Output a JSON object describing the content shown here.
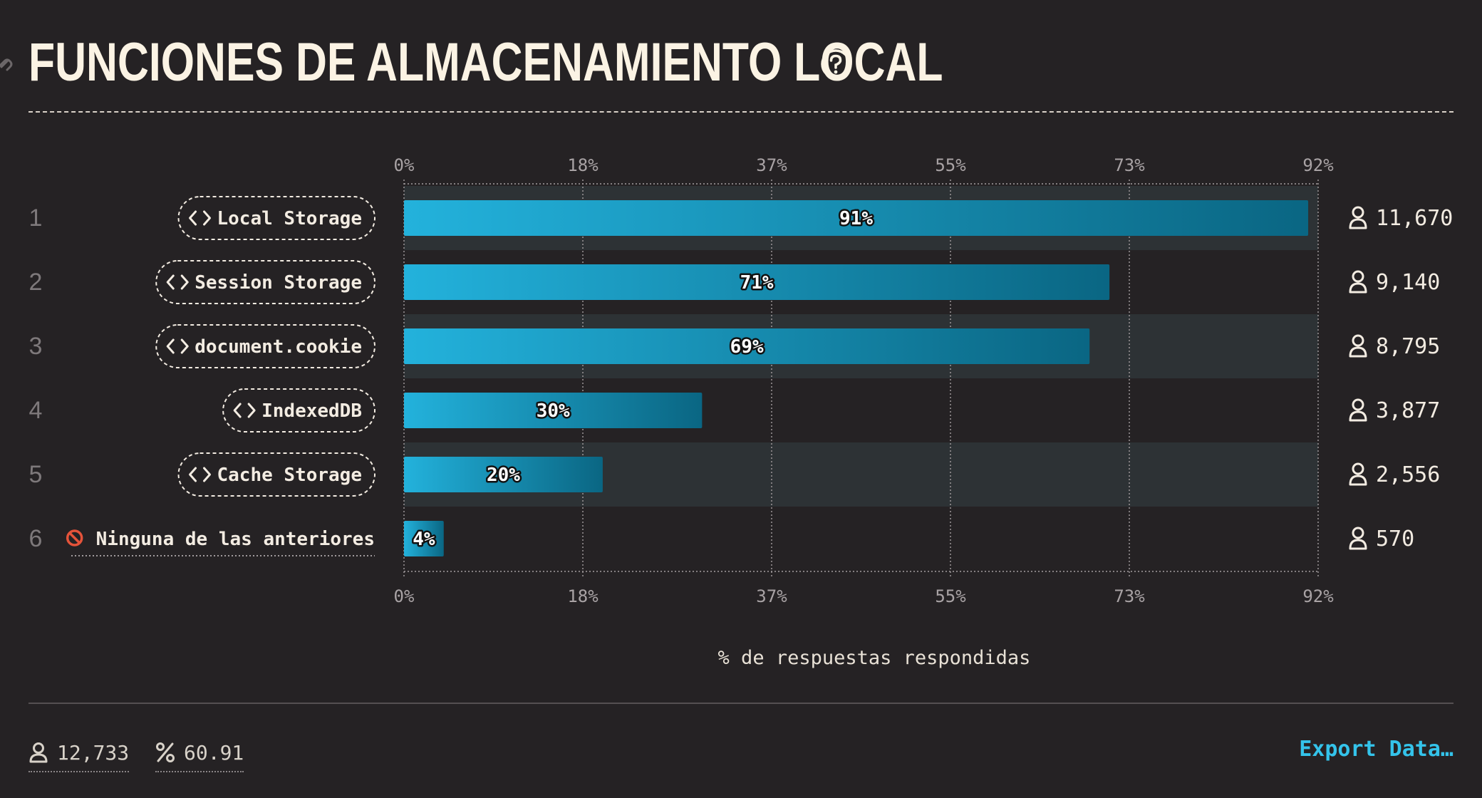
{
  "title": "FUNCIONES DE ALMACENAMIENTO LOCAL",
  "icons": {
    "link": "link-icon",
    "help": "help-circle-icon",
    "code": "code-brackets-icon",
    "none": "prohibited-icon",
    "user": "user-icon",
    "percent": "percent-icon"
  },
  "colors": {
    "background": "#252224",
    "bar_start": "#23b2dc",
    "bar_end": "#0a6683",
    "alt_row": "#2d3235",
    "accent": "#34c3ea"
  },
  "chart_data": {
    "type": "bar",
    "orientation": "horizontal",
    "categories": [
      "Local Storage",
      "Session Storage",
      "document.cookie",
      "IndexedDB",
      "Cache Storage",
      "Ninguna de las anteriores"
    ],
    "ranks": [
      "1",
      "2",
      "3",
      "4",
      "5",
      "6"
    ],
    "values": [
      91,
      71,
      69,
      30,
      20,
      4
    ],
    "value_labels": [
      "91%",
      "71%",
      "69%",
      "30%",
      "20%",
      "4%"
    ],
    "counts": [
      "11,670",
      "9,140",
      "8,795",
      "3,877",
      "2,556",
      "570"
    ],
    "xlim": [
      0,
      92
    ],
    "ticks": [
      0,
      18,
      37,
      55,
      73,
      92
    ],
    "tick_labels": [
      "0%",
      "18%",
      "37%",
      "55%",
      "73%",
      "92%"
    ],
    "xlabel": "% de respuestas respondidas",
    "grid": true
  },
  "footer": {
    "respondents": "12,733",
    "percent": "60.91",
    "export_label": "Export Data…"
  }
}
